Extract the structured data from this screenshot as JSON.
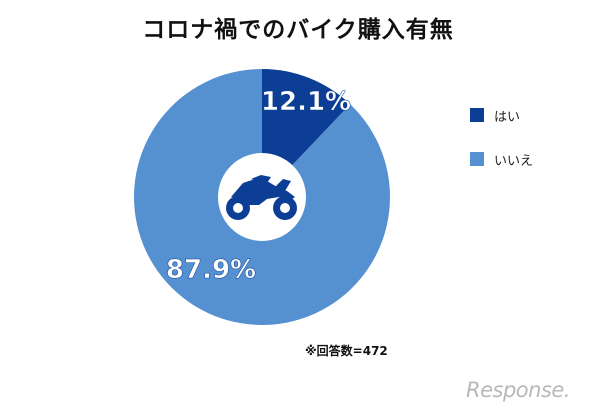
{
  "title": "コロナ禍でのバイク購入有無",
  "note": "※回答数=472",
  "brand": "Response.",
  "chart_data": {
    "type": "pie",
    "variant": "donut",
    "categories": [
      "はい",
      "いいえ"
    ],
    "values": [
      12.1,
      87.9
    ],
    "value_labels": [
      "12.1%",
      "87.9%"
    ],
    "colors": [
      "#0d3e95",
      "#5590d0"
    ],
    "legend_position": "right",
    "center_icon": "motorcycle-icon"
  }
}
